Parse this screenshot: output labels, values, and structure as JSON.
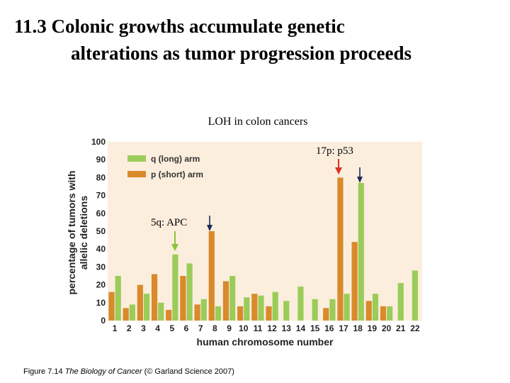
{
  "slide": {
    "title_line1": "11.3  Colonic growths accumulate genetic",
    "title_line2": "alterations as tumor progression proceeds",
    "caption_prefix": "Figure 7.14  ",
    "caption_book": "The Biology of Cancer",
    "caption_suffix": " (© Garland Science 2007)"
  },
  "colors": {
    "q_arm": "#9bcc5a",
    "p_arm": "#d98a2b",
    "plot_bg": "#fbeedd",
    "arrow_red": "#e0302a",
    "arrow_green": "#8ac43a",
    "arrow_dark": "#1a2a5a"
  },
  "chart_data": {
    "type": "bar",
    "title": "LOH in colon cancers",
    "xlabel": "human chromosome number",
    "ylabel_line1": "percentage of tumors with",
    "ylabel_line2": "allelic deletions",
    "ylim": [
      0,
      100
    ],
    "yticks": [
      0,
      10,
      20,
      30,
      40,
      50,
      60,
      70,
      80,
      90,
      100
    ],
    "categories": [
      "1",
      "2",
      "3",
      "4",
      "5",
      "6",
      "7",
      "8",
      "9",
      "10",
      "11",
      "12",
      "13",
      "14",
      "15",
      "16",
      "17",
      "18",
      "19",
      "20",
      "21",
      "22"
    ],
    "legend_position": "top-left",
    "series": [
      {
        "name": "p (short) arm",
        "color": "#d98a2b",
        "values": [
          16,
          7,
          20,
          26,
          6,
          25,
          9,
          50,
          22,
          8,
          15,
          8,
          null,
          null,
          null,
          7,
          80,
          44,
          11,
          8,
          null,
          null
        ]
      },
      {
        "name": "q (long) arm",
        "color": "#9bcc5a",
        "values": [
          25,
          9,
          15,
          10,
          37,
          32,
          12,
          8,
          25,
          13,
          14,
          16,
          11,
          19,
          12,
          12,
          15,
          77,
          15,
          8,
          21,
          28
        ]
      }
    ],
    "annotations": [
      {
        "text": "5q: APC",
        "chromosome": "5"
      },
      {
        "text": "17p: p53",
        "chromosome": "17"
      }
    ]
  }
}
